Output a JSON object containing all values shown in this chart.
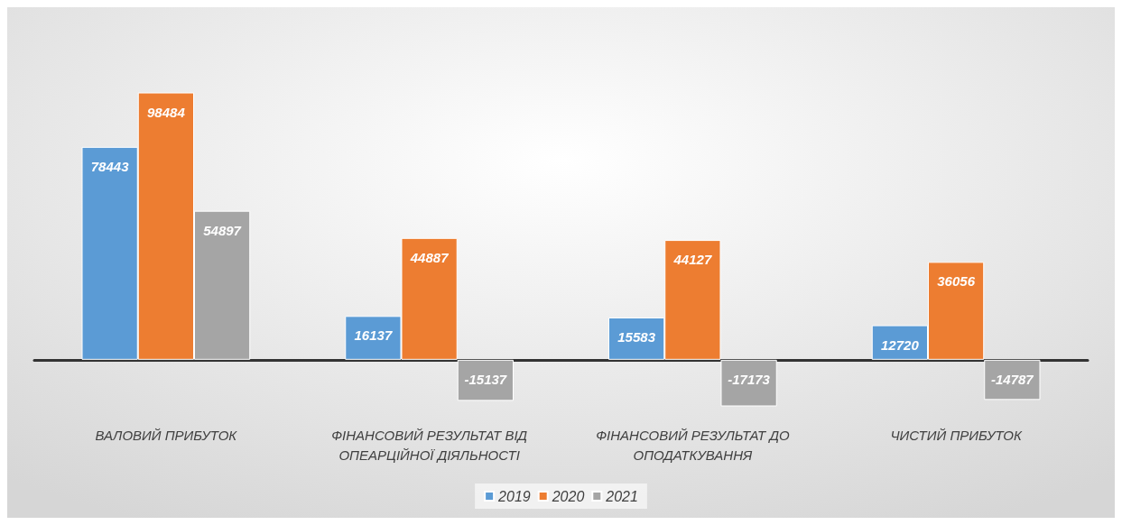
{
  "chart_data": {
    "type": "bar",
    "categories": [
      "ВАЛОВИЙ ПРИБУТОК",
      "ФІНАНСОВИЙ РЕЗУЛЬТАТ ВІД\nОПЕАРЦІЙНОЇ ДІЯЛЬНОСТІ",
      "ФІНАНСОВИЙ РЕЗУЛЬТАТ ДО\nОПОДАТКУВАННЯ",
      "ЧИСТИЙ ПРИБУТОК"
    ],
    "series": [
      {
        "name": "2019",
        "color": "#5b9bd5",
        "values": [
          78443,
          16137,
          15583,
          12720
        ]
      },
      {
        "name": "2020",
        "color": "#ed7d31",
        "values": [
          98484,
          44887,
          44127,
          36056
        ]
      },
      {
        "name": "2021",
        "color": "#a5a5a5",
        "values": [
          54897,
          -15137,
          -17173,
          -14787
        ]
      }
    ],
    "data_labels": true,
    "legend": "bottom"
  }
}
